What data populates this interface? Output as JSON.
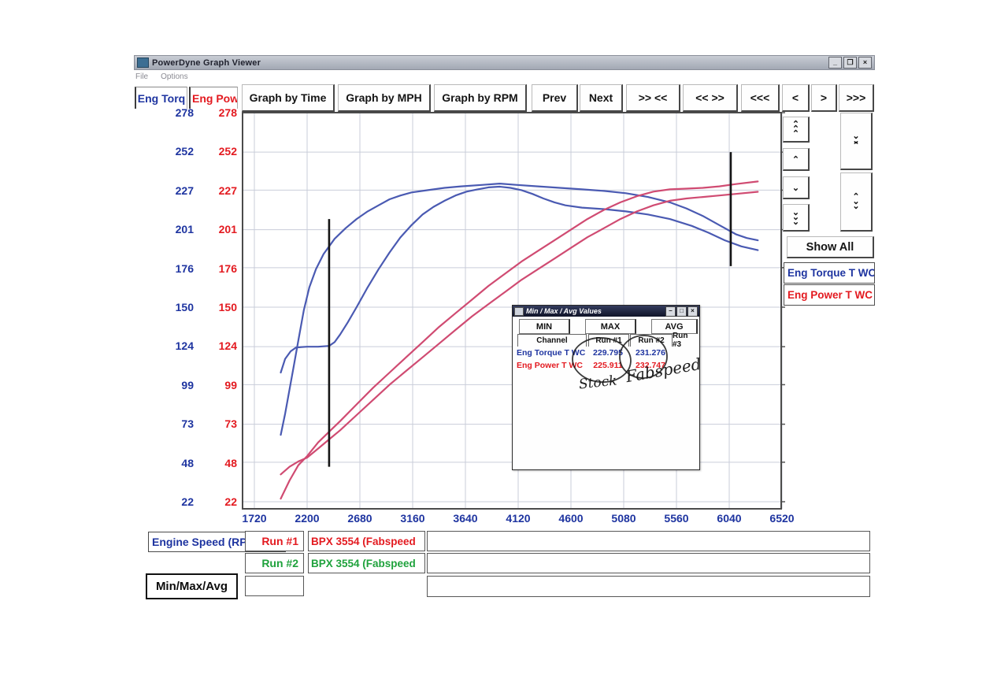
{
  "window": {
    "title": "PowerDyne Graph Viewer",
    "menu": [
      "File",
      "Options"
    ],
    "titlebar_buttons": [
      "_",
      "❐",
      "×"
    ]
  },
  "axis_headers": {
    "torque": "Eng Torq",
    "power": "Eng Powe"
  },
  "toolbar": {
    "buttons": [
      "Graph by Time",
      "Graph by MPH",
      "Graph by RPM",
      "Prev",
      "Next",
      ">> <<",
      "<< >>",
      "<<<",
      "<",
      ">",
      ">>>"
    ]
  },
  "right_panel": {
    "scroll_buttons": [
      "⌃⌃⌃",
      "⌃",
      "⌄",
      "⌄⌄⌄",
      "⌄⌄⌃",
      "⌃⌄⌄"
    ],
    "show_all_label": "Show All",
    "legend": [
      {
        "label": "Eng Torque T WC",
        "color": "#1e34a0"
      },
      {
        "label": "Eng Power T WC",
        "color": "#e31a20"
      }
    ]
  },
  "colors": {
    "axis_blue": "#1e34a0",
    "axis_red": "#e31a20",
    "run2_green": "#1fa23c",
    "curve_blue": "#4a5ab2",
    "curve_red": "#d04b72",
    "grid": "#c9cdd9",
    "frame": "#4b4b4b",
    "cursor": "#151515"
  },
  "chart_data": {
    "type": "line",
    "x_ticks": [
      1720,
      2200,
      2680,
      3160,
      3640,
      4120,
      4600,
      5080,
      5560,
      6040,
      6520
    ],
    "y_ticks": [
      278,
      252,
      227,
      201,
      176,
      150,
      124,
      99,
      73,
      48,
      22
    ],
    "x_range": [
      1720,
      6520
    ],
    "y_range": [
      22,
      278
    ],
    "xlabel": "Engine Speed (RPM)",
    "grid": true,
    "series": [
      {
        "name": "Eng Torque T WC - Run #2 (Fabspeed)",
        "color": "#4a5ab2",
        "points": [
          [
            1960,
            66
          ],
          [
            2000,
            80
          ],
          [
            2040,
            96
          ],
          [
            2080,
            112
          ],
          [
            2120,
            128
          ],
          [
            2170,
            148
          ],
          [
            2220,
            163
          ],
          [
            2280,
            175
          ],
          [
            2350,
            185
          ],
          [
            2450,
            195
          ],
          [
            2550,
            202
          ],
          [
            2650,
            208
          ],
          [
            2750,
            213
          ],
          [
            2850,
            217
          ],
          [
            2950,
            221
          ],
          [
            3050,
            223.5
          ],
          [
            3150,
            225.5
          ],
          [
            3300,
            227
          ],
          [
            3450,
            228.5
          ],
          [
            3600,
            229.5
          ],
          [
            3800,
            230.5
          ],
          [
            3950,
            231.3
          ],
          [
            4100,
            230.5
          ],
          [
            4300,
            229.5
          ],
          [
            4500,
            228.5
          ],
          [
            4700,
            227.5
          ],
          [
            4900,
            226.5
          ],
          [
            5100,
            225
          ],
          [
            5300,
            222.5
          ],
          [
            5500,
            219
          ],
          [
            5650,
            215
          ],
          [
            5800,
            210
          ],
          [
            5950,
            204
          ],
          [
            6100,
            198
          ],
          [
            6200,
            195.5
          ],
          [
            6300,
            194
          ]
        ]
      },
      {
        "name": "Eng Torque T WC - Run #1 (Stock)",
        "color": "#4a5ab2",
        "points": [
          [
            1960,
            107
          ],
          [
            2000,
            116
          ],
          [
            2050,
            121
          ],
          [
            2100,
            123.5
          ],
          [
            2200,
            124
          ],
          [
            2300,
            124
          ],
          [
            2400,
            124.5
          ],
          [
            2450,
            127
          ],
          [
            2500,
            132
          ],
          [
            2570,
            140
          ],
          [
            2650,
            150
          ],
          [
            2750,
            163
          ],
          [
            2850,
            175
          ],
          [
            2950,
            186
          ],
          [
            3050,
            196
          ],
          [
            3150,
            204
          ],
          [
            3250,
            211
          ],
          [
            3350,
            216
          ],
          [
            3450,
            220
          ],
          [
            3550,
            223.5
          ],
          [
            3650,
            226
          ],
          [
            3750,
            227.5
          ],
          [
            3850,
            228.8
          ],
          [
            3950,
            229.3
          ],
          [
            4050,
            228.5
          ],
          [
            4150,
            227
          ],
          [
            4250,
            224.5
          ],
          [
            4350,
            221.5
          ],
          [
            4450,
            219
          ],
          [
            4550,
            217
          ],
          [
            4700,
            215.5
          ],
          [
            4900,
            214.5
          ],
          [
            5100,
            213
          ],
          [
            5300,
            211
          ],
          [
            5500,
            208
          ],
          [
            5700,
            203.5
          ],
          [
            5850,
            199
          ],
          [
            6000,
            194
          ],
          [
            6150,
            190
          ],
          [
            6300,
            187.5
          ]
        ]
      },
      {
        "name": "Eng Power T WC - Run #2 (Fabspeed)",
        "color": "#d04b72",
        "points": [
          [
            1960,
            24
          ],
          [
            2040,
            36
          ],
          [
            2120,
            46
          ],
          [
            2200,
            52
          ],
          [
            2300,
            61
          ],
          [
            2400,
            68
          ],
          [
            2500,
            75
          ],
          [
            2650,
            86
          ],
          [
            2800,
            97
          ],
          [
            2950,
            107
          ],
          [
            3100,
            117
          ],
          [
            3250,
            127
          ],
          [
            3400,
            137
          ],
          [
            3550,
            146
          ],
          [
            3700,
            155
          ],
          [
            3850,
            164
          ],
          [
            4000,
            172
          ],
          [
            4150,
            180
          ],
          [
            4300,
            187
          ],
          [
            4450,
            194
          ],
          [
            4600,
            201
          ],
          [
            4750,
            208
          ],
          [
            4900,
            214
          ],
          [
            5050,
            219
          ],
          [
            5200,
            223
          ],
          [
            5350,
            226
          ],
          [
            5500,
            227.5
          ],
          [
            5650,
            228
          ],
          [
            5800,
            228.5
          ],
          [
            5950,
            229.5
          ],
          [
            6100,
            231
          ],
          [
            6300,
            232.7
          ]
        ]
      },
      {
        "name": "Eng Power T WC - Run #1 (Stock)",
        "color": "#d04b72",
        "points": [
          [
            1960,
            40
          ],
          [
            2040,
            45
          ],
          [
            2120,
            48.5
          ],
          [
            2200,
            51
          ],
          [
            2300,
            57
          ],
          [
            2400,
            63
          ],
          [
            2500,
            69
          ],
          [
            2650,
            79
          ],
          [
            2800,
            89
          ],
          [
            2950,
            99
          ],
          [
            3100,
            108
          ],
          [
            3250,
            117
          ],
          [
            3400,
            126
          ],
          [
            3550,
            135
          ],
          [
            3700,
            144
          ],
          [
            3850,
            152
          ],
          [
            4000,
            160
          ],
          [
            4150,
            168
          ],
          [
            4300,
            175
          ],
          [
            4450,
            182
          ],
          [
            4600,
            189
          ],
          [
            4750,
            196
          ],
          [
            4900,
            202
          ],
          [
            5050,
            208
          ],
          [
            5200,
            213
          ],
          [
            5350,
            217
          ],
          [
            5500,
            220
          ],
          [
            5650,
            221.5
          ],
          [
            5800,
            222.5
          ],
          [
            5950,
            223.5
          ],
          [
            6100,
            224.5
          ],
          [
            6300,
            225.9
          ]
        ]
      }
    ],
    "cursors": [
      {
        "rpm": 2400,
        "v_min": 45,
        "v_max": 208
      },
      {
        "rpm": 6054,
        "v_min": 177,
        "v_max": 252
      }
    ]
  },
  "minmax_window": {
    "title": "Min / Max / Avg Values",
    "titlebar_buttons": [
      "–",
      "□",
      "×"
    ],
    "tabs": [
      "MIN",
      "MAX",
      "AVG"
    ],
    "columns": [
      "Channel",
      "Run #1",
      "Run #2",
      "Run #3"
    ],
    "rows": [
      {
        "channel": "Eng Torque T WC",
        "run1": "229.795",
        "run2": "231.276",
        "run3": ""
      },
      {
        "channel": "Eng Power T WC",
        "run1": "225.911",
        "run2": "232.747",
        "run3": ""
      }
    ],
    "annotations": [
      {
        "text": "Stock"
      },
      {
        "text": "Fabspeed"
      }
    ]
  },
  "bottom": {
    "engine_speed_label": "Engine Speed (RP",
    "rows": [
      {
        "run": "Run #1",
        "desc": "BPX 3554  (Fabspeed"
      },
      {
        "run": "Run #2",
        "desc": "BPX 3554  (Fabspeed"
      }
    ],
    "minmax_button_label": "Min/Max/Avg"
  }
}
